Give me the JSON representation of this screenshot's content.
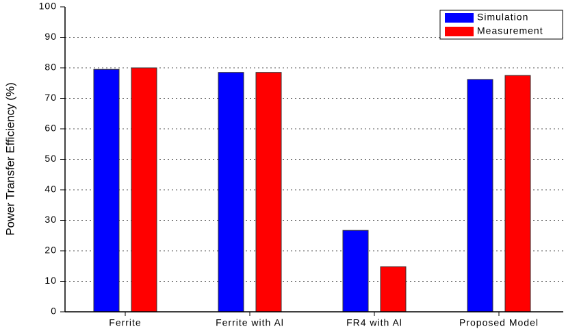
{
  "chart_data": {
    "type": "bar",
    "ylabel": "Power Transfer Efficiency (%)",
    "categories": [
      "Ferrite",
      "Ferrite with Al",
      "FR4 with Al",
      "Proposed Model"
    ],
    "series": [
      {
        "name": "Simulation",
        "color": "#0000ff",
        "values": [
          79.5,
          78.5,
          26.7,
          76.2
        ]
      },
      {
        "name": "Measurement",
        "color": "#ff0000",
        "values": [
          80,
          78.5,
          14.8,
          77.5
        ]
      }
    ],
    "ylim": [
      0,
      100
    ],
    "yticks": [
      0,
      10,
      20,
      30,
      40,
      50,
      60,
      70,
      80,
      90,
      100
    ],
    "grid": true,
    "legend": "top-right"
  }
}
